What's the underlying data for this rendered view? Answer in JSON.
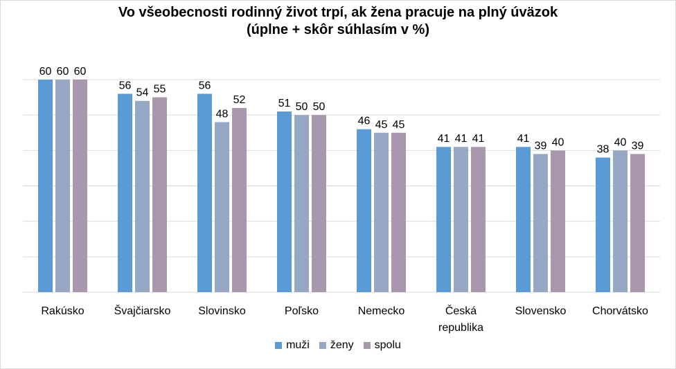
{
  "chart_data": {
    "type": "bar",
    "title_line1": "Vo všeobecnosti rodinný život trpí, ak žena pracuje na plný úväzok",
    "title_line2": "(úplne + skôr súhlasím v %)",
    "categories": [
      "Rakúsko",
      "Švajčiarsko",
      "Slovinsko",
      "Poľsko",
      "Nemecko",
      "Česká republika",
      "Slovensko",
      "Chorvátsko"
    ],
    "series": [
      {
        "name": "muži",
        "color": "#5b9bd5",
        "values": [
          60,
          56,
          56,
          51,
          46,
          41,
          41,
          38
        ]
      },
      {
        "name": "ženy",
        "color": "#97a8c4",
        "values": [
          60,
          54,
          48,
          50,
          45,
          41,
          39,
          40
        ]
      },
      {
        "name": "spolu",
        "color": "#a998ad",
        "values": [
          60,
          55,
          52,
          50,
          45,
          41,
          40,
          39
        ]
      }
    ],
    "ylim": [
      0,
      60
    ],
    "ygrid_step": 10,
    "grid": true,
    "legend_position": "bottom"
  }
}
